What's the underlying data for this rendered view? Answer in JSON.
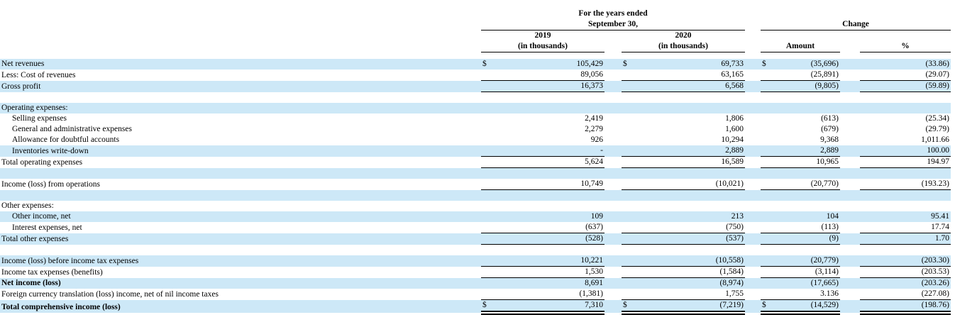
{
  "table": {
    "currency_symbol": "$",
    "colors": {
      "row_highlight": "#cde8f7",
      "text": "#000000",
      "rule_line": "#000000"
    },
    "header": {
      "years_ended_line1": "For the years ended",
      "years_ended_line2": "September 30,",
      "change_label": "Change",
      "col_2019": {
        "year": "2019",
        "unit": "(in thousands)"
      },
      "col_2020": {
        "year": "2020",
        "unit": "(in thousands)"
      },
      "amount_label": "Amount",
      "percent_label": "%"
    },
    "rows": [
      {
        "label": "Net revenues",
        "highlight": true,
        "dollar": true,
        "v2019": "105,429",
        "v2020": "69,733",
        "amount": "(35,696)",
        "percent": "(33.86)"
      },
      {
        "label": "Less: Cost of revenues",
        "v2019": "89,056",
        "v2020": "63,165",
        "amount": "(25,891)",
        "percent": "(29.07)",
        "underline": "single"
      },
      {
        "label": "Gross profit",
        "highlight": true,
        "v2019": "16,373",
        "v2020": "6,568",
        "amount": "(9,805)",
        "percent": "(59.89)",
        "underline": "single"
      },
      {
        "blank": true
      },
      {
        "label": "Operating expenses:",
        "highlight": true
      },
      {
        "label": "Selling expenses",
        "indent": true,
        "v2019": "2,419",
        "v2020": "1,806",
        "amount": "(613)",
        "percent": "(25.34)"
      },
      {
        "label": "General and administrative expenses",
        "indent": true,
        "v2019": "2,279",
        "v2020": "1,600",
        "amount": "(679)",
        "percent": "(29.79)"
      },
      {
        "label": "Allowance for doubtful accounts",
        "indent": true,
        "v2019": "926",
        "v2020": "10,294",
        "amount": "9,368",
        "percent": "1,011.66"
      },
      {
        "label": "Inventories write-down",
        "indent": true,
        "highlight": true,
        "v2019": "-",
        "v2020": "2,889",
        "amount": "2,889",
        "percent": "100.00",
        "underline": "single"
      },
      {
        "label": "Total operating expenses",
        "v2019": "5,624",
        "v2020": "16,589",
        "amount": "10,965",
        "percent": "194.97",
        "underline": "single"
      },
      {
        "blank": true,
        "highlight": true
      },
      {
        "label": "Income (loss) from operations",
        "v2019": "10,749",
        "v2020": "(10,021)",
        "amount": "(20,770)",
        "percent": "(193.23)",
        "underline": "single"
      },
      {
        "blank": true,
        "highlight": true
      },
      {
        "label": "Other expenses:"
      },
      {
        "label": "Other income, net",
        "indent": true,
        "highlight": true,
        "v2019": "109",
        "v2020": "213",
        "amount": "104",
        "percent": "95.41"
      },
      {
        "label": "Interest expenses, net",
        "indent": true,
        "v2019": "(637)",
        "v2020": "(750)",
        "amount": "(113)",
        "percent": "17.74",
        "underline": "single"
      },
      {
        "label": "Total other expenses",
        "highlight": true,
        "v2019": "(528)",
        "v2020": "(537)",
        "amount": "(9)",
        "percent": "1.70",
        "underline": "single"
      },
      {
        "blank": true
      },
      {
        "label": "Income (loss) before income tax expenses",
        "highlight": true,
        "v2019": "10,221",
        "v2020": "(10,558)",
        "amount": "(20,779)",
        "percent": "(203.30)",
        "underline": "single"
      },
      {
        "label": "Income tax expenses (benefits)",
        "v2019": "1,530",
        "v2020": "(1,584)",
        "amount": "(3,114)",
        "percent": "(203.53)",
        "underline": "single"
      },
      {
        "label": "Net income (loss)",
        "bold": true,
        "highlight": true,
        "v2019": "8,691",
        "v2020": "(8,974)",
        "amount": "(17,665)",
        "percent": "(203.26)"
      },
      {
        "label": "Foreign currency translation (loss) income, net of nil income taxes",
        "v2019": "(1,381)",
        "v2020": "1,755",
        "amount": "3.136",
        "percent": "(227.08)",
        "underline": "single"
      },
      {
        "label": "Total comprehensive income (loss)",
        "bold": true,
        "highlight": true,
        "dollar": true,
        "v2019": "7,310",
        "v2020": "(7,219)",
        "amount": "(14,529)",
        "percent": "(198.76)",
        "underline": "double"
      }
    ]
  }
}
